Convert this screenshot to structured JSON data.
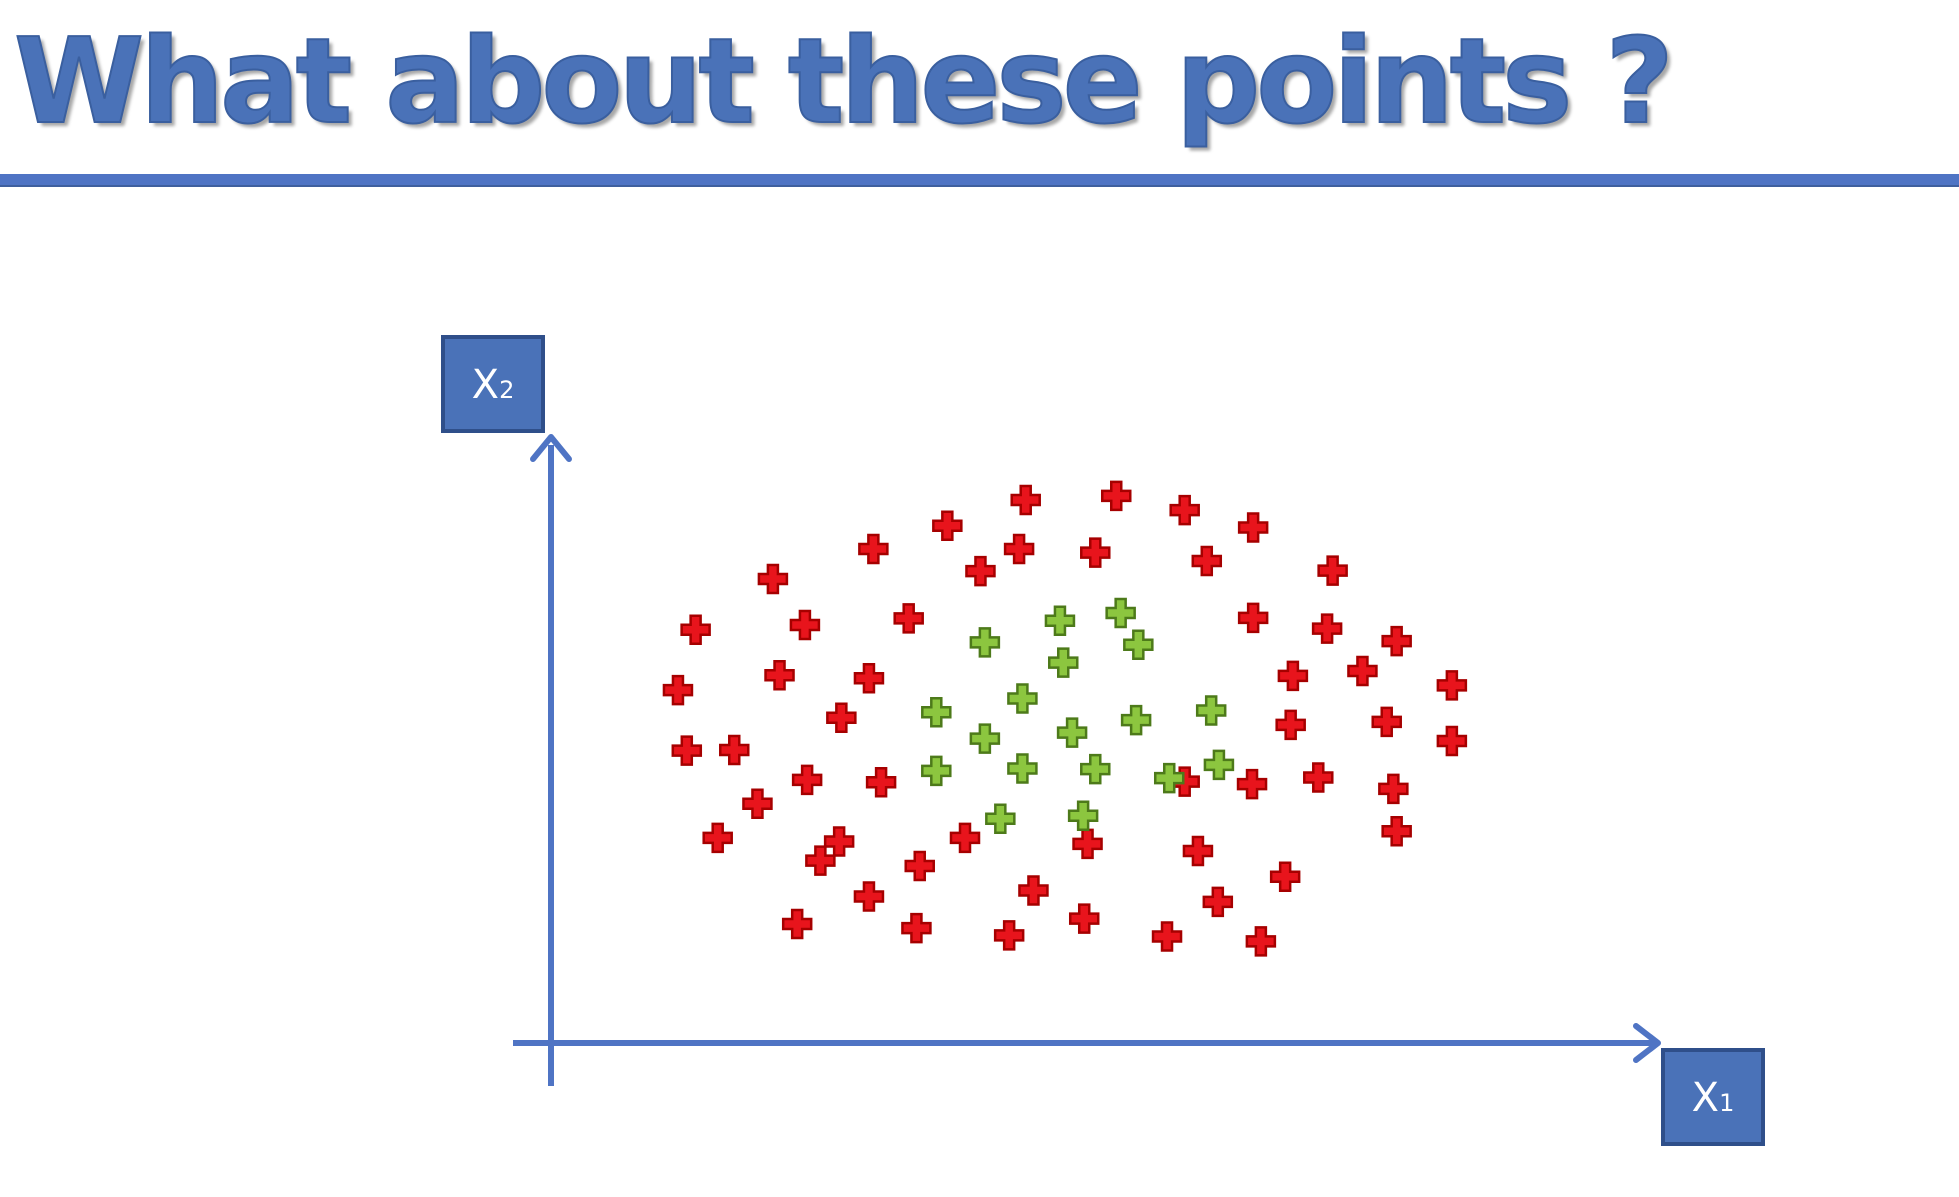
{
  "slide": {
    "title": "What about these points ?",
    "accent_color": "#4a72b8"
  },
  "chart_data": {
    "type": "scatter",
    "xlabel": "X",
    "xlabel_sub": "1",
    "ylabel": "X",
    "ylabel_sub": "2",
    "marker": "plus",
    "grid": false,
    "xlim": [
      0,
      100
    ],
    "ylim": [
      0,
      100
    ],
    "series": [
      {
        "color": "#e8141c",
        "outline": "#a60000",
        "points": [
          [
            43.0,
            90.8
          ],
          [
            51.2,
            91.5
          ],
          [
            57.4,
            89.1
          ],
          [
            63.6,
            86.2
          ],
          [
            35.9,
            86.5
          ],
          [
            29.2,
            82.6
          ],
          [
            42.4,
            82.6
          ],
          [
            49.3,
            82.0
          ],
          [
            59.4,
            80.6
          ],
          [
            70.8,
            79.0
          ],
          [
            38.9,
            78.9
          ],
          [
            20.1,
            77.6
          ],
          [
            32.4,
            71.0
          ],
          [
            63.6,
            71.1
          ],
          [
            70.3,
            69.3
          ],
          [
            13.1,
            69.1
          ],
          [
            23.0,
            69.9
          ],
          [
            76.6,
            67.2
          ],
          [
            20.7,
            61.5
          ],
          [
            28.8,
            61.0
          ],
          [
            67.2,
            61.4
          ],
          [
            73.5,
            62.2
          ],
          [
            81.6,
            59.8
          ],
          [
            11.5,
            59.0
          ],
          [
            26.3,
            54.4
          ],
          [
            67.0,
            53.2
          ],
          [
            75.7,
            53.7
          ],
          [
            16.6,
            49.0
          ],
          [
            81.6,
            50.5
          ],
          [
            12.3,
            48.9
          ],
          [
            23.2,
            44.0
          ],
          [
            29.9,
            43.6
          ],
          [
            57.4,
            43.7
          ],
          [
            63.5,
            43.3
          ],
          [
            69.5,
            44.4
          ],
          [
            76.3,
            42.5
          ],
          [
            18.7,
            40.0
          ],
          [
            76.6,
            35.4
          ],
          [
            15.1,
            34.3
          ],
          [
            26.1,
            33.7
          ],
          [
            37.5,
            34.3
          ],
          [
            48.6,
            33.3
          ],
          [
            58.6,
            32.1
          ],
          [
            24.4,
            30.5
          ],
          [
            33.4,
            29.6
          ],
          [
            66.5,
            27.8
          ],
          [
            43.7,
            25.5
          ],
          [
            60.4,
            23.6
          ],
          [
            28.8,
            24.5
          ],
          [
            48.3,
            20.8
          ],
          [
            22.3,
            19.9
          ],
          [
            33.1,
            19.2
          ],
          [
            41.5,
            18.0
          ],
          [
            55.8,
            17.8
          ],
          [
            64.3,
            17.0
          ]
        ]
      },
      {
        "color": "#8cc63f",
        "outline": "#4d7a1a",
        "points": [
          [
            51.6,
            71.9
          ],
          [
            46.1,
            70.6
          ],
          [
            39.3,
            67.0
          ],
          [
            53.2,
            66.6
          ],
          [
            46.4,
            63.6
          ],
          [
            42.7,
            57.6
          ],
          [
            34.9,
            55.3
          ],
          [
            59.8,
            55.6
          ],
          [
            53.0,
            54.0
          ],
          [
            47.2,
            51.9
          ],
          [
            39.3,
            50.9
          ],
          [
            60.5,
            46.5
          ],
          [
            34.9,
            45.5
          ],
          [
            42.7,
            45.9
          ],
          [
            49.3,
            45.8
          ],
          [
            56.0,
            44.3
          ],
          [
            40.7,
            37.5
          ],
          [
            48.2,
            38.0
          ]
        ]
      }
    ]
  }
}
